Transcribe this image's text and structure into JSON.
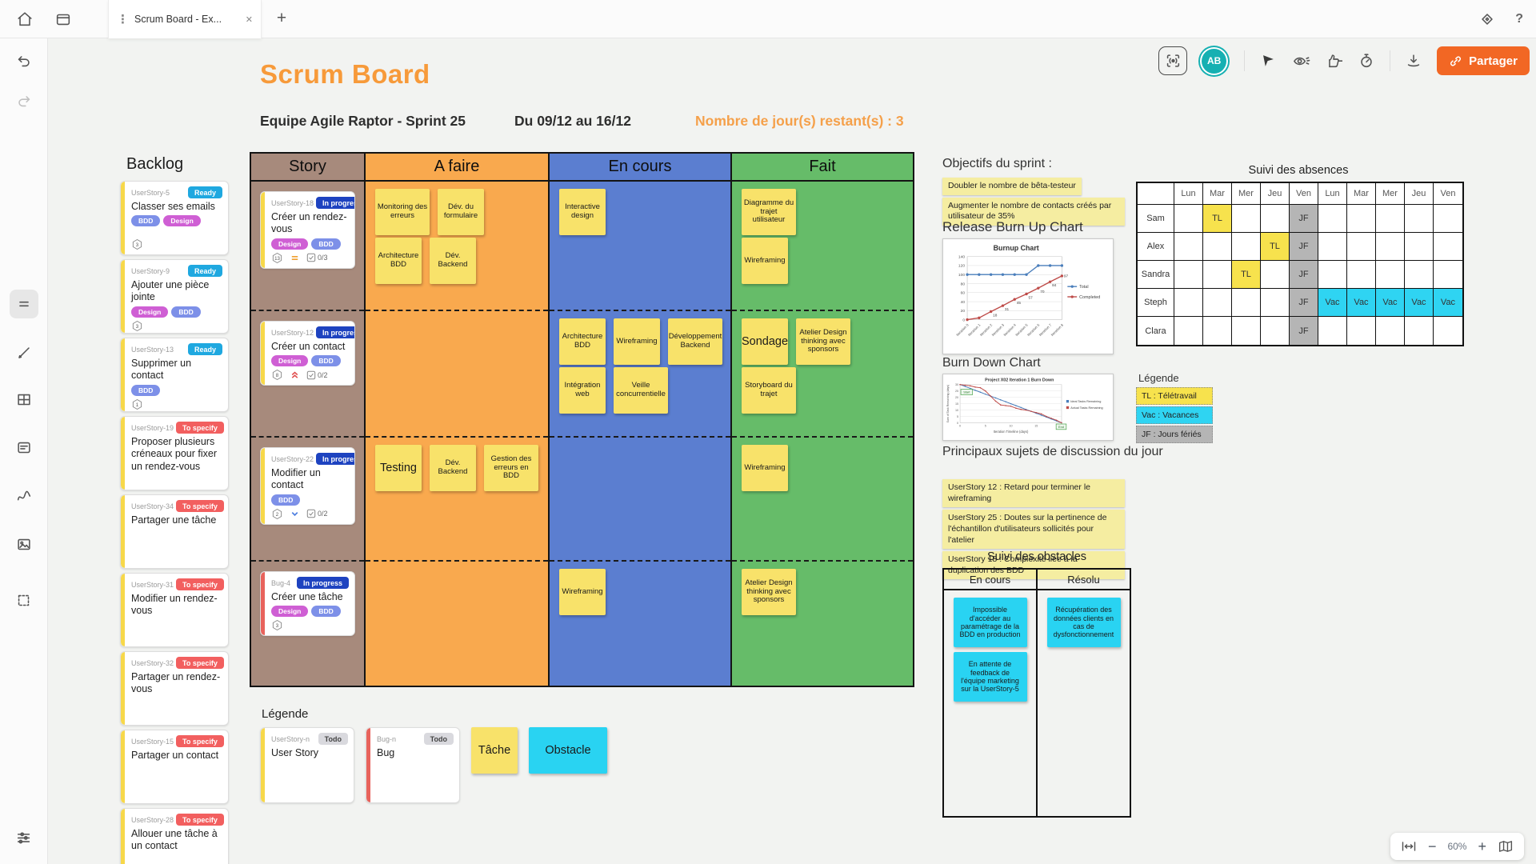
{
  "topbar": {
    "tab": {
      "title": "Scrum Board - Ex..."
    },
    "help": "?"
  },
  "canvas_toolbar": {
    "avatar_initials": "AB",
    "share_label": "Partager"
  },
  "header": {
    "title": "Scrum Board",
    "team": "Equipe Agile Raptor - Sprint 25",
    "dates": "Du 09/12 au 16/12",
    "days_left": "Nombre de jour(s) restant(s) : 3"
  },
  "backlog": {
    "title": "Backlog",
    "cards": [
      {
        "id": "UserStory-5",
        "status": "Ready",
        "title": "Classer ses emails",
        "tags": [
          "BDD",
          "Design"
        ],
        "estimate": "3"
      },
      {
        "id": "UserStory-9",
        "status": "Ready",
        "title": "Ajouter une pièce jointe",
        "tags": [
          "Design",
          "BDD"
        ],
        "estimate": "3"
      },
      {
        "id": "UserStory-13",
        "status": "Ready",
        "title": "Supprimer un contact",
        "tags": [
          "BDD"
        ],
        "estimate": "1"
      },
      {
        "id": "UserStory-19",
        "status": "To specify",
        "title": "Proposer plusieurs créneaux pour fixer un rendez-vous"
      },
      {
        "id": "UserStory-34",
        "status": "To specify",
        "title": "Partager une tâche"
      },
      {
        "id": "UserStory-31",
        "status": "To specify",
        "title": "Modifier un rendez-vous"
      },
      {
        "id": "UserStory-32",
        "status": "To specify",
        "title": "Partager un rendez-vous"
      },
      {
        "id": "UserStory-15",
        "status": "To specify",
        "title": "Partager un contact"
      },
      {
        "id": "UserStory-28",
        "status": "To specify",
        "title": "Allouer une tâche à un contact"
      }
    ]
  },
  "board": {
    "story_column": {
      "header": "Story",
      "color": "#a78a7c",
      "cards": [
        {
          "id": "UserStory-18",
          "status": "In progress",
          "title": "Créer un rendez-vous",
          "tags": [
            "Design",
            "BDD"
          ],
          "estimate": "13",
          "priority": "medium",
          "checklist": "0/3"
        },
        {
          "id": "UserStory-12",
          "status": "In progress",
          "title": "Créer un contact",
          "tags": [
            "Design",
            "BDD"
          ],
          "estimate": "8",
          "priority": "high",
          "checklist": "0/2"
        },
        {
          "id": "UserStory-22",
          "status": "In progress",
          "title": "Modifier un contact",
          "tags": [
            "BDD"
          ],
          "estimate": "2",
          "priority": "low",
          "checklist": "0/2"
        },
        {
          "id": "Bug-4",
          "status": "In progress",
          "title": "Créer une tâche",
          "tags": [
            "Design",
            "BDD"
          ],
          "estimate": "3",
          "stripe": "red"
        }
      ]
    },
    "columns": [
      {
        "header": "A faire",
        "color": "#f9a94e",
        "rows": [
          [
            [
              "Monitoring des erreurs",
              "Dév. du formulaire"
            ],
            [
              "Architecture BDD",
              "Dév. Backend"
            ]
          ],
          [],
          [
            [
              "Testing",
              "Dév. Backend",
              "Gestion des erreurs en BDD"
            ]
          ],
          []
        ]
      },
      {
        "header": "En cours",
        "color": "#5b7ed0",
        "rows": [
          [
            [
              "Interactive design"
            ]
          ],
          [
            [
              "Architecture BDD",
              "Wireframing",
              "Développement Backend"
            ],
            [
              "Intégration web",
              "Veille concurrentielle"
            ]
          ],
          [],
          [
            [
              "Wireframing"
            ]
          ]
        ]
      },
      {
        "header": "Fait",
        "color": "#66bc69",
        "rows": [
          [
            [
              "Diagramme du trajet utilisateur"
            ],
            [
              "Wireframing"
            ]
          ],
          [
            [
              "Sondage",
              "Atelier Design thinking avec sponsors"
            ],
            [
              "Storyboard du trajet"
            ]
          ],
          [
            [
              "Wireframing"
            ]
          ],
          [
            [
              "Atelier Design thinking avec sponsors"
            ]
          ]
        ]
      }
    ]
  },
  "legend": {
    "title": "Légende",
    "story_card": {
      "id": "UserStory-n",
      "status": "Todo",
      "title": "User Story"
    },
    "bug_card": {
      "id": "Bug-n",
      "status": "Todo",
      "title": "Bug",
      "stripe": "red"
    },
    "task_note": "Tâche",
    "obstacle_note": "Obstacle"
  },
  "right_panel": {
    "objectives": {
      "heading": "Objectifs du sprint :",
      "notes": [
        "Doubler le nombre de bêta-testeur",
        "Augmenter le nombre de contacts créés par utilisateur de 35%"
      ]
    },
    "burnup_heading": "Release Burn Up Chart",
    "burndown_heading": "Burn Down Chart",
    "discussion": {
      "heading": "Principaux sujets de discussion du jour",
      "notes": [
        "UserStory 12 : Retard pour terminer le wireframing",
        "UserStory 25 : Doutes sur la pertinence de l'échantillon d'utilisateurs sollicités pour l'atelier",
        "UserStory 18 : Complexité liée à la duplication des BDD"
      ]
    }
  },
  "absences": {
    "title": "Suivi des absences",
    "days": [
      "Lun",
      "Mar",
      "Mer",
      "Jeu",
      "Ven",
      "Lun",
      "Mar",
      "Mer",
      "Jeu",
      "Ven"
    ],
    "people": [
      {
        "name": "Sam",
        "cells": [
          "",
          "TL",
          "",
          "",
          "JF",
          "",
          "",
          "",
          "",
          ""
        ]
      },
      {
        "name": "Alex",
        "cells": [
          "",
          "",
          "",
          "TL",
          "JF",
          "",
          "",
          "",
          "",
          ""
        ]
      },
      {
        "name": "Sandra",
        "cells": [
          "",
          "",
          "TL",
          "",
          "JF",
          "",
          "",
          "",
          "",
          ""
        ]
      },
      {
        "name": "Steph",
        "cells": [
          "",
          "",
          "",
          "",
          "JF",
          "Vac",
          "Vac",
          "Vac",
          "Vac",
          "Vac"
        ]
      },
      {
        "name": "Clara",
        "cells": [
          "",
          "",
          "",
          "",
          "JF",
          "",
          "",
          "",
          "",
          ""
        ]
      }
    ],
    "legend_title": "Légende",
    "legend": [
      {
        "code": "TL",
        "label": "TL : Télétravail"
      },
      {
        "code": "Vac",
        "label": "Vac : Vacances"
      },
      {
        "code": "JF",
        "label": "JF : Jours fériés"
      }
    ]
  },
  "obstacles": {
    "title": "Suivi des obstacles",
    "columns": [
      {
        "header": "En cours",
        "notes": [
          "Impossible d'accéder au paramétrage de la BDD en production",
          "En attente de feedback de l'équipe marketing sur la UserStory-5"
        ]
      },
      {
        "header": "Résolu",
        "notes": [
          "Récupération des données clients en cas de dysfonctionnement"
        ]
      }
    ]
  },
  "chart_data": [
    {
      "type": "line",
      "title": "Burnup Chart",
      "x": [
        "Iteration 0",
        "Iteration 1",
        "Iteration 2",
        "Iteration 3",
        "Iteration 4",
        "Iteration 5",
        "Iteration 6",
        "Iteration 7",
        "Iteration 8"
      ],
      "series": [
        {
          "name": "Total",
          "color": "#4a7ebb",
          "values": [
            100,
            100,
            100,
            100,
            100,
            100,
            120,
            120,
            120
          ]
        },
        {
          "name": "Completed",
          "color": "#be4b48",
          "values": [
            0,
            4,
            18,
            31,
            45,
            57,
            70,
            84,
            97
          ]
        }
      ],
      "ylim": [
        0,
        140
      ],
      "yticks": [
        0,
        20,
        40,
        60,
        80,
        100,
        120,
        140
      ],
      "grid": true,
      "legend_position": "right"
    },
    {
      "type": "line",
      "title": "Project X02 Iteration 1 Burn Down",
      "xlabel": "Iteration Timeline (days)",
      "ylabel": "Sum of Task Remaining (days)",
      "x": [
        0,
        1,
        2,
        3,
        4,
        5,
        6,
        7,
        8,
        9,
        10,
        11,
        12,
        13,
        14,
        15,
        16,
        17,
        18,
        19,
        20
      ],
      "series": [
        {
          "name": "Ideal Tasks Remaining",
          "color": "#4a7ebb",
          "values": [
            30,
            28.5,
            27,
            25.5,
            24,
            22.5,
            21,
            19.5,
            18,
            16.5,
            15,
            13.5,
            12,
            10.5,
            9,
            7.5,
            6,
            4.5,
            3,
            1.5,
            0
          ]
        },
        {
          "name": "Actual Tasks Remaining",
          "color": "#be4b48",
          "values": [
            30,
            29.5,
            29,
            28,
            27.5,
            25,
            21,
            17,
            14,
            13.5,
            13,
            11.5,
            10.5,
            10,
            9,
            8,
            7,
            5,
            3.5,
            2,
            0
          ]
        }
      ],
      "ylim": [
        0,
        30
      ],
      "yticks": [
        0,
        5,
        10,
        15,
        20,
        25,
        30
      ],
      "xticks": [
        0,
        5,
        10,
        15,
        20
      ],
      "grid": true,
      "legend_position": "right",
      "annotations": [
        "Start",
        "End"
      ]
    }
  ],
  "zoombar": {
    "zoom_level": "60%"
  },
  "colors": {
    "title_accent": "#f79a3a",
    "days_left": "#f5a04a",
    "share_button": "#f26724",
    "avatar_bg": "#16b0b2",
    "status": {
      "Ready": "#1fa8e0",
      "To specify": "#f25f5f",
      "In progress": "#1e43c0",
      "Todo": "#d9d9de"
    },
    "tags": {
      "BDD": "#7d90e8",
      "Design": "#cf5fd4"
    },
    "sticky_yellow": "#f8e26a",
    "sticky_strip": "#f5eda1",
    "sticky_cyan": "#29d3f2",
    "absence": {
      "TL": "#f7e24d",
      "Vac": "#2fd4f2",
      "JF": "#b5b5b5"
    }
  }
}
